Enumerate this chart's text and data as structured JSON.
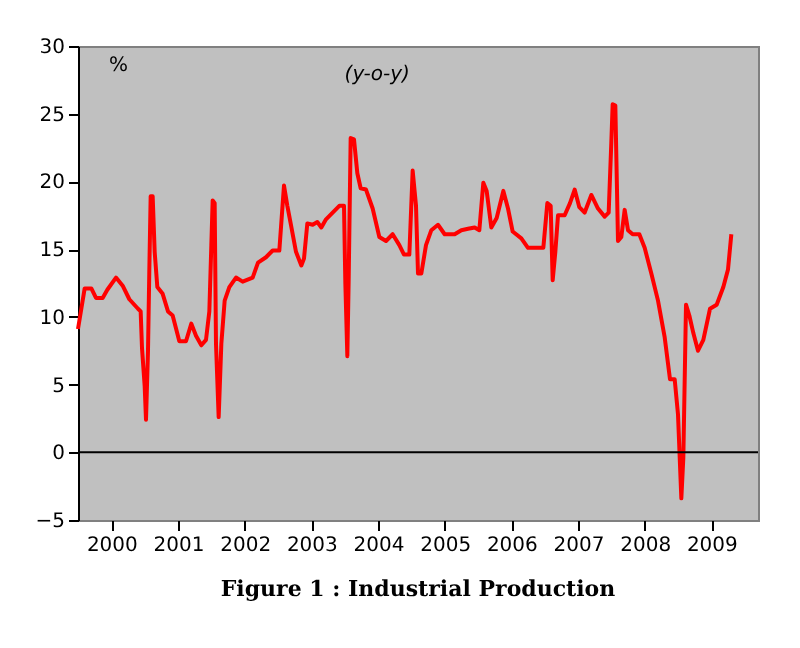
{
  "chart_data": {
    "type": "line",
    "title": "Figure 1 : Industrial Production",
    "ylabel": "%",
    "annotations": [
      "(y-o-y)"
    ],
    "series": [
      {
        "color": "#ff0000",
        "x": [
          2000.0,
          2000.05,
          2000.1,
          2000.2,
          2000.27,
          2000.37,
          2000.44,
          2000.57,
          2000.67,
          2000.77,
          2000.9,
          2000.94,
          2000.96,
          2001.0,
          2001.02,
          2001.05,
          2001.07,
          2001.09,
          2001.12,
          2001.15,
          2001.19,
          2001.27,
          2001.35,
          2001.42,
          2001.52,
          2001.62,
          2001.7,
          2001.77,
          2001.85,
          2001.92,
          2001.97,
          2002.0,
          2002.02,
          2002.05,
          2002.07,
          2002.11,
          2002.15,
          2002.2,
          2002.27,
          2002.37,
          2002.47,
          2002.62,
          2002.7,
          2002.82,
          2002.92,
          2003.02,
          2003.09,
          2003.14,
          2003.19,
          2003.27,
          2003.35,
          2003.39,
          2003.44,
          2003.52,
          2003.59,
          2003.65,
          2003.72,
          2003.82,
          2003.92,
          2003.99,
          2004.01,
          2004.04,
          2004.06,
          2004.09,
          2004.14,
          2004.19,
          2004.24,
          2004.32,
          2004.42,
          2004.52,
          2004.62,
          2004.72,
          2004.82,
          2004.89,
          2004.97,
          2005.02,
          2005.07,
          2005.1,
          2005.15,
          2005.22,
          2005.3,
          2005.4,
          2005.5,
          2005.65,
          2005.75,
          2005.85,
          2005.95,
          2006.02,
          2006.08,
          2006.13,
          2006.2,
          2006.28,
          2006.38,
          2006.45,
          2006.52,
          2006.65,
          2006.75,
          2006.92,
          2006.98,
          2007.04,
          2007.09,
          2007.12,
          2007.16,
          2007.2,
          2007.3,
          2007.38,
          2007.45,
          2007.52,
          2007.6,
          2007.7,
          2007.8,
          2007.9,
          2007.96,
          2008.0,
          2008.02,
          2008.06,
          2008.1,
          2008.15,
          2008.2,
          2008.25,
          2008.32,
          2008.42,
          2008.5,
          2008.6,
          2008.7,
          2008.8,
          2008.88,
          2008.95,
          2009.0,
          2009.05,
          2009.08,
          2009.12,
          2009.17,
          2009.23,
          2009.3,
          2009.38,
          2009.48,
          2009.58,
          2009.68,
          2009.75,
          2009.8
        ],
        "values": [
          9.1,
          10.6,
          12.1,
          12.1,
          11.4,
          11.4,
          12.0,
          12.9,
          12.3,
          11.3,
          10.6,
          10.4,
          7.7,
          4.9,
          2.4,
          7.5,
          13.5,
          18.9,
          18.9,
          14.8,
          12.2,
          11.7,
          10.4,
          10.1,
          8.2,
          8.2,
          9.5,
          8.6,
          7.9,
          8.3,
          10.4,
          15.3,
          18.6,
          18.4,
          8.0,
          2.6,
          8.0,
          11.2,
          12.2,
          12.9,
          12.6,
          12.9,
          14.0,
          14.4,
          14.9,
          14.9,
          19.7,
          18.2,
          16.9,
          14.8,
          13.8,
          14.3,
          16.9,
          16.8,
          17.0,
          16.6,
          17.2,
          17.7,
          18.2,
          18.2,
          12.5,
          7.1,
          12.7,
          23.2,
          23.1,
          20.6,
          19.5,
          19.4,
          18.0,
          15.9,
          15.6,
          16.1,
          15.3,
          14.6,
          14.6,
          20.8,
          18.2,
          13.2,
          13.2,
          15.3,
          16.4,
          16.8,
          16.1,
          16.1,
          16.4,
          16.5,
          16.6,
          16.4,
          19.9,
          19.3,
          16.6,
          17.3,
          19.3,
          18.0,
          16.3,
          15.8,
          15.1,
          15.1,
          15.1,
          18.4,
          18.2,
          12.7,
          14.8,
          17.5,
          17.5,
          18.4,
          19.4,
          18.1,
          17.7,
          19.0,
          18.0,
          17.4,
          17.7,
          22.9,
          25.7,
          25.6,
          15.6,
          15.9,
          17.9,
          16.4,
          16.1,
          16.1,
          15.1,
          13.2,
          11.2,
          8.5,
          5.4,
          5.4,
          2.8,
          -3.4,
          -0.4,
          10.9,
          10.1,
          8.8,
          7.5,
          8.3,
          10.6,
          10.9,
          12.2,
          13.5,
          16.1
        ]
      }
    ],
    "xlim": [
      2000,
      2010.2
    ],
    "xticks": [
      {
        "value": 2000.5,
        "label": "2000"
      },
      {
        "value": 2001.5,
        "label": "2001"
      },
      {
        "value": 2002.5,
        "label": "2002"
      },
      {
        "value": 2003.5,
        "label": "2003"
      },
      {
        "value": 2004.5,
        "label": "2004"
      },
      {
        "value": 2005.5,
        "label": "2005"
      },
      {
        "value": 2006.5,
        "label": "2006"
      },
      {
        "value": 2007.5,
        "label": "2007"
      },
      {
        "value": 2008.5,
        "label": "2008"
      },
      {
        "value": 2009.5,
        "label": "2009"
      }
    ],
    "legend": false,
    "ylim": [
      -5,
      30
    ],
    "yticks": [
      -5,
      0,
      5,
      10,
      15,
      20,
      25,
      30
    ],
    "ref_lines": [
      {
        "axis": "y",
        "value": 0,
        "color": "#000000"
      }
    ],
    "grid": false,
    "marker": "none",
    "line_style": "solid"
  }
}
